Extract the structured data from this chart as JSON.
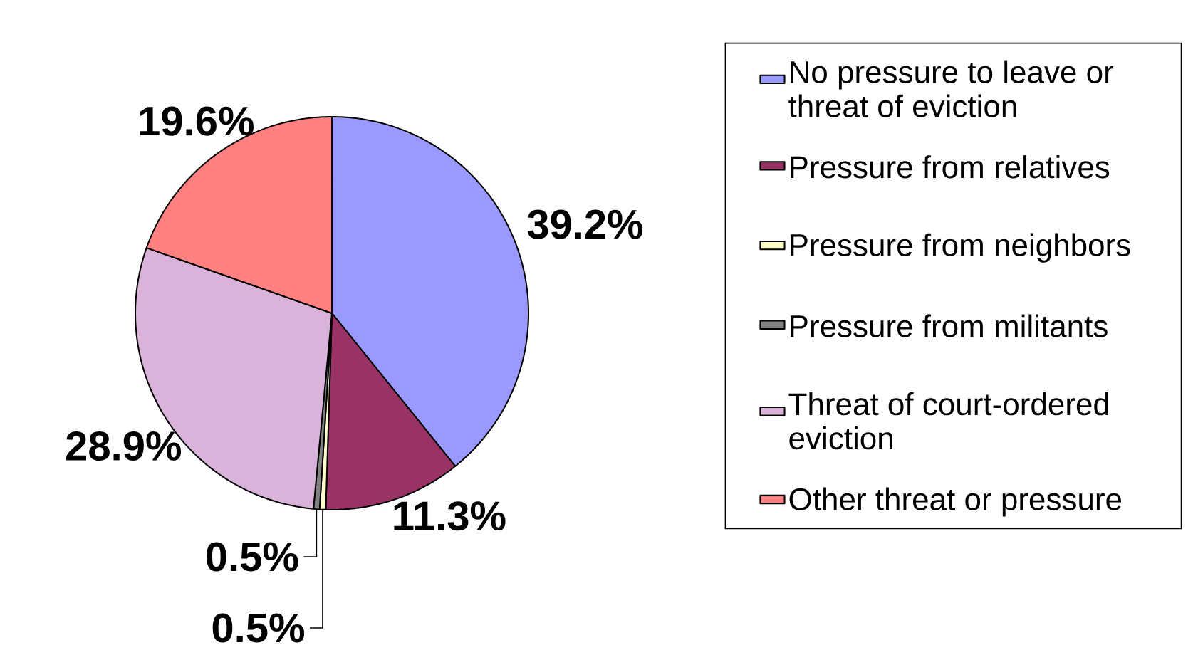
{
  "chart_data": {
    "type": "pie",
    "categories": [
      "No pressure to leave or threat of eviction",
      "Pressure from relatives",
      "Pressure from neighbors",
      "Pressure from militants",
      "Threat of court-ordered eviction",
      "Other threat or pressure"
    ],
    "values": [
      39.2,
      11.3,
      0.5,
      0.5,
      28.9,
      19.6
    ],
    "colors": [
      "#9999ff",
      "#993366",
      "#ffffcc",
      "#808080",
      "#d9b3d9",
      "#ff8080"
    ],
    "value_labels": [
      "39.2%",
      "11.3%",
      "0.5%",
      "0.5%",
      "28.9%",
      "19.6%"
    ],
    "legend": "right"
  }
}
